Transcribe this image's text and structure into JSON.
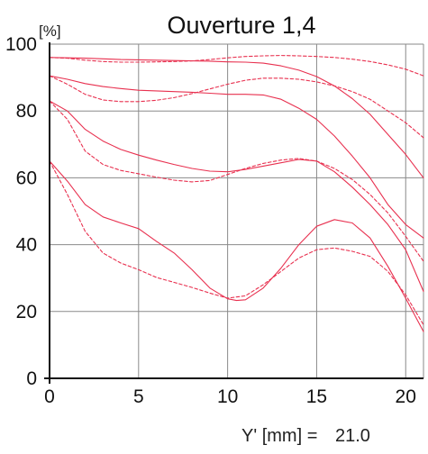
{
  "chart_data": {
    "type": "line",
    "title": "Ouverture 1,4",
    "ylabel": "[%]",
    "xlabel": "",
    "x_ticks": [
      0,
      5,
      10,
      15,
      20
    ],
    "y_ticks": [
      0,
      20,
      40,
      60,
      80,
      100
    ],
    "xlim": [
      0,
      21
    ],
    "ylim": [
      0,
      100
    ],
    "grid": true,
    "footer": {
      "label": "Y' [mm] =",
      "value": "21.0"
    },
    "line_color": "#e8304f",
    "series": [
      {
        "style": "solid",
        "x": [
          0,
          1,
          2,
          3,
          4,
          5,
          6,
          7,
          8,
          9,
          10,
          11,
          12,
          13,
          14,
          15,
          16,
          17,
          18,
          19,
          20,
          21
        ],
        "y": [
          96,
          95.9,
          95.8,
          95.6,
          95.4,
          95.3,
          95.2,
          95.1,
          95,
          94.9,
          94.7,
          94.6,
          94.3,
          93.5,
          92.2,
          90.3,
          87.5,
          83.7,
          79,
          73,
          67,
          60
        ]
      },
      {
        "style": "dashed",
        "x": [
          0,
          1,
          2,
          3,
          4,
          5,
          6,
          7,
          8,
          9,
          10,
          11,
          12,
          13,
          14,
          15,
          16,
          17,
          18,
          19,
          20,
          21
        ],
        "y": [
          96,
          95.8,
          95.2,
          94.8,
          94.6,
          94.6,
          94.7,
          94.8,
          95,
          95.4,
          95.9,
          96.3,
          96.5,
          96.6,
          96.5,
          96.3,
          96,
          95.5,
          94.8,
          93.8,
          92.5,
          90.5
        ]
      },
      {
        "style": "solid",
        "x": [
          0,
          1,
          2,
          3,
          4,
          5,
          6,
          7,
          8,
          9,
          10,
          11,
          12,
          13,
          14,
          15,
          16,
          17,
          18,
          19,
          20,
          21
        ],
        "y": [
          90.5,
          89.5,
          88.2,
          87.3,
          86.7,
          86.2,
          86,
          85.8,
          85.6,
          85.3,
          85,
          85,
          84.8,
          83.5,
          80.8,
          77.5,
          72.5,
          66.5,
          60,
          52,
          46,
          42
        ]
      },
      {
        "style": "dashed",
        "x": [
          0,
          1,
          2,
          3,
          4,
          5,
          6,
          7,
          8,
          9,
          10,
          11,
          12,
          13,
          14,
          15,
          16,
          17,
          18,
          19,
          20,
          21
        ],
        "y": [
          90.5,
          88,
          85,
          83.3,
          82.8,
          82.8,
          83.2,
          84,
          85.2,
          86.6,
          88,
          89.2,
          89.8,
          89.8,
          89.5,
          88.7,
          87.5,
          85.8,
          83.5,
          80,
          76.5,
          72
        ]
      },
      {
        "style": "solid",
        "x": [
          0,
          1,
          2,
          3,
          4,
          5,
          6,
          7,
          8,
          9,
          10,
          11,
          12,
          13,
          14,
          15,
          16,
          17,
          18,
          19,
          20,
          21
        ],
        "y": [
          83,
          80,
          74.5,
          71,
          68.5,
          66.8,
          65.3,
          64,
          62.8,
          62,
          61.8,
          62.5,
          63.5,
          64.5,
          65.5,
          65,
          61.8,
          57.2,
          52,
          46,
          38.5,
          26
        ]
      },
      {
        "style": "dashed",
        "x": [
          0,
          1,
          2,
          3,
          4,
          5,
          6,
          7,
          8,
          9,
          10,
          11,
          12,
          13,
          14,
          15,
          16,
          17,
          18,
          19,
          20,
          21
        ],
        "y": [
          83,
          77.5,
          68,
          64,
          62.2,
          61.2,
          60.2,
          59.3,
          58.8,
          59.2,
          61,
          62.8,
          64.3,
          65.3,
          65.8,
          65,
          62.8,
          59.5,
          55,
          49.5,
          42.5,
          35
        ]
      },
      {
        "style": "solid",
        "x": [
          0,
          1,
          2,
          3,
          4,
          5,
          6,
          7,
          8,
          9,
          10,
          10.5,
          11,
          12,
          13,
          14,
          15,
          16,
          17,
          18,
          19,
          20,
          21
        ],
        "y": [
          65,
          59,
          52,
          48.3,
          46.5,
          44.8,
          41,
          37.5,
          32.5,
          27,
          23.8,
          23.3,
          23.5,
          27,
          33,
          40,
          45.5,
          47.5,
          46.5,
          42,
          33.5,
          24,
          14
        ]
      },
      {
        "style": "dashed",
        "x": [
          0,
          1,
          2,
          3,
          4,
          5,
          6,
          7,
          8,
          9,
          10,
          11,
          12,
          13,
          14,
          15,
          16,
          17,
          18,
          19,
          20,
          21
        ],
        "y": [
          65,
          55,
          44,
          37.5,
          34.5,
          32.5,
          30.2,
          28.7,
          27.2,
          25.5,
          24,
          24.7,
          28,
          32,
          36,
          38.5,
          39,
          38,
          36.5,
          32,
          25,
          16
        ]
      }
    ]
  }
}
